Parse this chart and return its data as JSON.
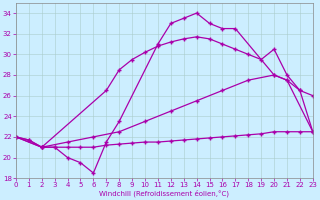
{
  "xlabel": "Windchill (Refroidissement éolien,°C)",
  "bg_color": "#cceeff",
  "line_color": "#aa00aa",
  "xlim": [
    0,
    23
  ],
  "ylim": [
    18,
    35
  ],
  "yticks": [
    18,
    20,
    22,
    24,
    26,
    28,
    30,
    32,
    34
  ],
  "xticks": [
    0,
    1,
    2,
    3,
    4,
    5,
    6,
    7,
    8,
    9,
    10,
    11,
    12,
    13,
    14,
    15,
    16,
    17,
    18,
    19,
    20,
    21,
    22,
    23
  ],
  "curve_zigzag_x": [
    0,
    1,
    2,
    3,
    4,
    5,
    6,
    7,
    8,
    11,
    12,
    13,
    14,
    15,
    16,
    17,
    20,
    21,
    23
  ],
  "curve_zigzag_y": [
    22,
    21.7,
    21,
    21,
    20,
    19.5,
    18.5,
    21.5,
    23.5,
    31,
    33,
    33.5,
    34,
    33,
    32.5,
    32.5,
    28,
    27.5,
    22.5
  ],
  "curve_upper_x": [
    0,
    2,
    7,
    8,
    9,
    10,
    11,
    12,
    13,
    14,
    15,
    16,
    17,
    18,
    19,
    20,
    21,
    22,
    23
  ],
  "curve_upper_y": [
    22,
    21,
    26.5,
    28.5,
    29.5,
    30.2,
    30.8,
    31.2,
    31.5,
    31.7,
    31.5,
    31,
    30.5,
    30,
    29.5,
    30.5,
    28,
    26.5,
    22.5
  ],
  "curve_lower_x": [
    0,
    2,
    4,
    6,
    8,
    10,
    12,
    14,
    16,
    18,
    20,
    21,
    22,
    23
  ],
  "curve_lower_y": [
    22,
    21,
    21.5,
    22,
    22.5,
    23.5,
    24.5,
    25.5,
    26.5,
    27.5,
    28,
    27.5,
    26.5,
    26
  ],
  "curve_flat_x": [
    0,
    1,
    2,
    3,
    4,
    5,
    6,
    7,
    8,
    9,
    10,
    11,
    12,
    13,
    14,
    15,
    16,
    17,
    18,
    19,
    20,
    21,
    22,
    23
  ],
  "curve_flat_y": [
    22,
    21.7,
    21,
    21,
    21,
    21.0,
    21.0,
    21.2,
    21.3,
    21.4,
    21.5,
    21.5,
    21.6,
    21.7,
    21.8,
    21.9,
    22.0,
    22.1,
    22.2,
    22.3,
    22.5,
    22.5,
    22.5,
    22.5
  ]
}
